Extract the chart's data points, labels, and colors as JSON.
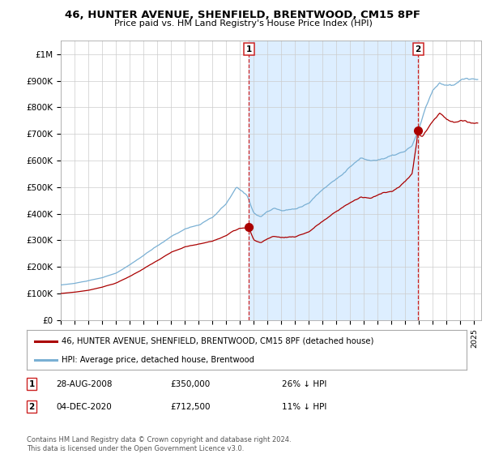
{
  "title": "46, HUNTER AVENUE, SHENFIELD, BRENTWOOD, CM15 8PF",
  "subtitle": "Price paid vs. HM Land Registry's House Price Index (HPI)",
  "ylabel_ticks": [
    "£0",
    "£100K",
    "£200K",
    "£300K",
    "£400K",
    "£500K",
    "£600K",
    "£700K",
    "£800K",
    "£900K",
    "£1M"
  ],
  "ytick_values": [
    0,
    100000,
    200000,
    300000,
    400000,
    500000,
    600000,
    700000,
    800000,
    900000,
    1000000
  ],
  "ylim": [
    0,
    1050000
  ],
  "xlim_start": 1995.0,
  "xlim_end": 2025.5,
  "transaction1_date": 2008.65,
  "transaction1_price": 350000,
  "transaction1_label": "1",
  "transaction2_date": 2020.92,
  "transaction2_price": 712500,
  "transaction2_label": "2",
  "legend_property": "46, HUNTER AVENUE, SHENFIELD, BRENTWOOD, CM15 8PF (detached house)",
  "legend_hpi": "HPI: Average price, detached house, Brentwood",
  "note1_label": "1",
  "note1_date": "28-AUG-2008",
  "note1_price": "£350,000",
  "note1_pct": "26% ↓ HPI",
  "note2_label": "2",
  "note2_date": "04-DEC-2020",
  "note2_price": "£712,500",
  "note2_pct": "11% ↓ HPI",
  "copyright": "Contains HM Land Registry data © Crown copyright and database right 2024.\nThis data is licensed under the Open Government Licence v3.0.",
  "property_color": "#aa0000",
  "hpi_color": "#7ab0d4",
  "shade_color": "#ddeeff",
  "vline_color": "#cc2222",
  "background_color": "#ffffff",
  "grid_color": "#cccccc"
}
